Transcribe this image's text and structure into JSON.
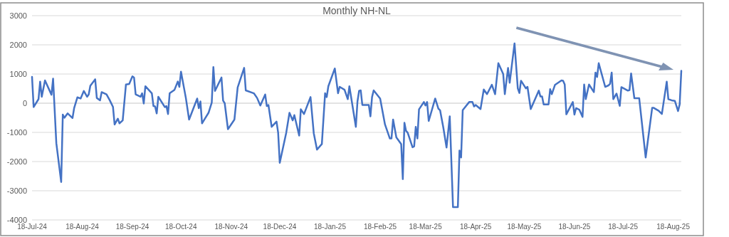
{
  "chart_data": {
    "type": "line",
    "title": "Monthly NH-NL",
    "x": [
      "2024-07-18",
      "2024-07-19",
      "2024-07-22",
      "2024-07-23",
      "2024-07-24",
      "2024-07-26",
      "2024-07-30",
      "2024-07-31",
      "2024-08-02",
      "2024-08-05",
      "2024-08-06",
      "2024-08-07",
      "2024-08-09",
      "2024-08-12",
      "2024-08-13",
      "2024-08-15",
      "2024-08-17",
      "2024-08-19",
      "2024-08-21",
      "2024-08-22",
      "2024-08-23",
      "2024-08-26",
      "2024-08-27",
      "2024-08-29",
      "2024-08-30",
      "2024-09-02",
      "2024-09-04",
      "2024-09-06",
      "2024-09-07",
      "2024-09-09",
      "2024-09-10",
      "2024-09-12",
      "2024-09-14",
      "2024-09-16",
      "2024-09-18",
      "2024-09-19",
      "2024-09-20",
      "2024-09-23",
      "2024-09-24",
      "2024-09-25",
      "2024-09-26",
      "2024-09-30",
      "2024-10-01",
      "2024-10-02",
      "2024-10-03",
      "2024-10-04",
      "2024-10-08",
      "2024-10-09",
      "2024-10-10",
      "2024-10-11",
      "2024-10-14",
      "2024-10-16",
      "2024-10-17",
      "2024-10-18",
      "2024-10-21",
      "2024-10-23",
      "2024-10-28",
      "2024-10-29",
      "2024-10-30",
      "2024-10-31",
      "2024-11-02",
      "2024-11-04",
      "2024-11-06",
      "2024-11-07",
      "2024-11-08",
      "2024-11-12",
      "2024-11-13",
      "2024-11-14",
      "2024-11-16",
      "2024-11-20",
      "2024-11-22",
      "2024-11-26",
      "2024-11-27",
      "2024-12-02",
      "2024-12-04",
      "2024-12-06",
      "2024-12-09",
      "2024-12-10",
      "2024-12-11",
      "2024-12-13",
      "2024-12-16",
      "2024-12-17",
      "2024-12-18",
      "2024-12-22",
      "2024-12-24",
      "2024-12-26",
      "2024-12-27",
      "2024-12-30",
      "2024-12-31",
      "2025-01-02",
      "2025-01-06",
      "2025-01-08",
      "2025-01-10",
      "2025-01-13",
      "2025-01-15",
      "2025-01-16",
      "2025-01-17",
      "2025-01-21",
      "2025-01-23",
      "2025-01-24",
      "2025-01-27",
      "2025-01-29",
      "2025-01-30",
      "2025-02-03",
      "2025-02-04",
      "2025-02-05",
      "2025-02-06",
      "2025-02-07",
      "2025-02-11",
      "2025-02-12",
      "2025-02-13",
      "2025-02-14",
      "2025-02-18",
      "2025-02-21",
      "2025-02-24",
      "2025-02-25",
      "2025-02-26",
      "2025-02-28",
      "2025-03-03",
      "2025-03-04",
      "2025-03-05",
      "2025-03-06",
      "2025-03-07",
      "2025-03-10",
      "2025-03-11",
      "2025-03-12",
      "2025-03-13",
      "2025-03-14",
      "2025-03-17",
      "2025-03-18",
      "2025-03-19",
      "2025-03-20",
      "2025-03-24",
      "2025-03-26",
      "2025-03-27",
      "2025-03-29",
      "2025-03-31",
      "2025-04-02",
      "2025-04-04",
      "2025-04-07",
      "2025-04-08",
      "2025-04-09",
      "2025-04-10",
      "2025-04-14",
      "2025-04-16",
      "2025-04-17",
      "2025-04-18",
      "2025-04-21",
      "2025-04-23",
      "2025-04-25",
      "2025-04-28",
      "2025-04-30",
      "2025-05-02",
      "2025-05-05",
      "2025-05-06",
      "2025-05-08",
      "2025-05-09",
      "2025-05-12",
      "2025-05-14",
      "2025-05-15",
      "2025-05-16",
      "2025-05-19",
      "2025-05-20",
      "2025-05-22",
      "2025-05-27",
      "2025-05-28",
      "2025-05-29",
      "2025-05-30",
      "2025-06-02",
      "2025-06-03",
      "2025-06-04",
      "2025-06-06",
      "2025-06-10",
      "2025-06-11",
      "2025-06-12",
      "2025-06-13",
      "2025-06-17",
      "2025-06-18",
      "2025-06-19",
      "2025-06-21",
      "2025-06-23",
      "2025-06-24",
      "2025-06-25",
      "2025-06-27",
      "2025-06-30",
      "2025-07-01",
      "2025-07-02",
      "2025-07-03",
      "2025-07-07",
      "2025-07-09",
      "2025-07-10",
      "2025-07-11",
      "2025-07-12",
      "2025-07-14",
      "2025-07-16",
      "2025-07-17",
      "2025-07-21",
      "2025-07-22",
      "2025-07-23",
      "2025-07-25",
      "2025-07-28",
      "2025-08-01",
      "2025-08-05",
      "2025-08-06",
      "2025-08-09",
      "2025-08-11",
      "2025-08-14",
      "2025-08-15",
      "2025-08-17",
      "2025-08-19",
      "2025-08-21",
      "2025-08-22",
      "2025-08-23"
    ],
    "series": [
      {
        "color": "#4472c4",
        "values": [
          900,
          -130,
          140,
          740,
          220,
          780,
          290,
          840,
          -1370,
          -2700,
          -390,
          -500,
          -350,
          -510,
          -170,
          200,
          160,
          420,
          220,
          300,
          600,
          820,
          180,
          100,
          380,
          300,
          100,
          -130,
          -730,
          -530,
          -690,
          -590,
          640,
          660,
          920,
          880,
          300,
          220,
          340,
          -10,
          580,
          340,
          -100,
          -110,
          -350,
          220,
          -130,
          -100,
          -370,
          340,
          460,
          740,
          560,
          1080,
          180,
          -560,
          160,
          -170,
          60,
          -690,
          -510,
          -330,
          20,
          1240,
          420,
          880,
          90,
          0,
          -890,
          -560,
          540,
          1210,
          440,
          340,
          180,
          -80,
          300,
          -100,
          -60,
          -810,
          -630,
          -1010,
          -2040,
          -1010,
          -330,
          -590,
          -410,
          -1110,
          -210,
          -370,
          210,
          -1030,
          -1590,
          -1400,
          340,
          210,
          580,
          1190,
          340,
          560,
          460,
          140,
          580,
          -810,
          60,
          420,
          440,
          -60,
          -60,
          -450,
          210,
          440,
          160,
          -730,
          -1210,
          -1210,
          -560,
          -1170,
          -1400,
          -2600,
          -670,
          -950,
          -1010,
          -1510,
          -1480,
          -810,
          -1210,
          -210,
          40,
          -80,
          40,
          -610,
          160,
          -190,
          -240,
          -830,
          -1520,
          -450,
          -3560,
          -3560,
          -1620,
          -1860,
          -240,
          40,
          40,
          -110,
          -60,
          -200,
          470,
          310,
          630,
          310,
          1370,
          1000,
          310,
          1210,
          700,
          2050,
          510,
          350,
          770,
          510,
          560,
          -200,
          430,
          230,
          230,
          -40,
          -40,
          480,
          310,
          630,
          780,
          770,
          640,
          -380,
          40,
          -390,
          -170,
          -220,
          -470,
          640,
          140,
          640,
          380,
          1050,
          900,
          1370,
          560,
          610,
          660,
          1050,
          140,
          330,
          -90,
          550,
          430,
          450,
          1020,
          170,
          170,
          -1860,
          -160,
          -160,
          -260,
          -370,
          740,
          140,
          100,
          80,
          -270,
          -40,
          1110
        ]
      }
    ],
    "xlim": [
      "2024-07-18",
      "2025-08-23"
    ],
    "xticks": [
      {
        "value": "2024-07-18",
        "label": "18-Jul-24"
      },
      {
        "value": "2024-08-18",
        "label": "18-Aug-24"
      },
      {
        "value": "2024-09-18",
        "label": "18-Sep-24"
      },
      {
        "value": "2024-10-18",
        "label": "18-Oct-24"
      },
      {
        "value": "2024-11-18",
        "label": "18-Nov-24"
      },
      {
        "value": "2024-12-18",
        "label": "18-Dec-24"
      },
      {
        "value": "2025-01-18",
        "label": "18-Jan-25"
      },
      {
        "value": "2025-02-18",
        "label": "18-Feb-25"
      },
      {
        "value": "2025-03-18",
        "label": "18-Mar-25"
      },
      {
        "value": "2025-04-18",
        "label": "18-Apr-25"
      },
      {
        "value": "2025-05-18",
        "label": "18-May-25"
      },
      {
        "value": "2025-06-18",
        "label": "18-Jun-25"
      },
      {
        "value": "2025-07-18",
        "label": "18-Jul-25"
      },
      {
        "value": "2025-08-18",
        "label": "18-Aug-25"
      }
    ],
    "ylim": [
      -4000,
      3000
    ],
    "yticks": [
      -4000,
      -3000,
      -2000,
      -1000,
      0,
      1000,
      2000,
      3000
    ],
    "grid": "y",
    "marker": "none",
    "line_style": "solid"
  }
}
